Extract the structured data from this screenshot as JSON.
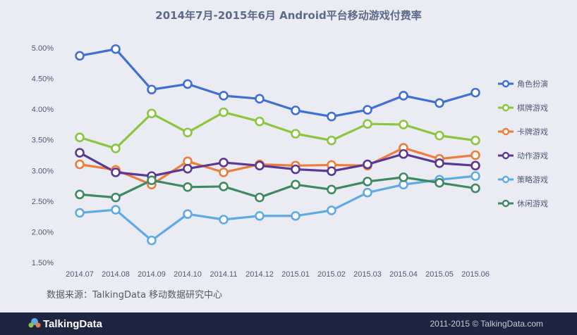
{
  "source_note": "数据来源：TalkingData 移动数据研究中心",
  "footer": {
    "logo_text": "TalkingData",
    "copyright": "2011-2015 © TalkingData.com"
  },
  "chart_data": {
    "type": "line",
    "title": "2014年7月-2015年6月 Android平台移动游戏付费率",
    "xlabel": "",
    "ylabel": "",
    "ylim": [
      1.5,
      5.0
    ],
    "y_ticks": [
      "5.00%",
      "4.50%",
      "4.00%",
      "3.50%",
      "3.00%",
      "2.50%",
      "2.00%",
      "1.50%"
    ],
    "y_tick_values": [
      5.0,
      4.5,
      4.0,
      3.5,
      3.0,
      2.5,
      2.0,
      1.5
    ],
    "grid": false,
    "legend_position": "right",
    "categories": [
      "2014.07",
      "2014.08",
      "2014.09",
      "2014.10",
      "2014.11",
      "2014.12",
      "2015.01",
      "2015.02",
      "2015.03",
      "2015.04",
      "2015.05",
      "2015.06"
    ],
    "series": [
      {
        "name": "角色扮演",
        "color": "#3f6fd6",
        "values": [
          4.87,
          4.98,
          4.32,
          4.41,
          4.22,
          4.17,
          3.98,
          3.88,
          3.99,
          4.22,
          4.1,
          4.27
        ]
      },
      {
        "name": "棋牌游戏",
        "color": "#8cc53e",
        "values": [
          3.54,
          3.36,
          3.93,
          3.62,
          3.95,
          3.8,
          3.6,
          3.49,
          3.76,
          3.75,
          3.57,
          3.49
        ]
      },
      {
        "name": "卡牌游戏",
        "color": "#ee7d3b",
        "values": [
          3.1,
          3.01,
          2.77,
          3.15,
          2.97,
          3.1,
          3.08,
          3.09,
          3.08,
          3.37,
          3.19,
          3.25
        ]
      },
      {
        "name": "动作游戏",
        "color": "#5a3895",
        "values": [
          3.29,
          2.97,
          2.91,
          3.03,
          3.13,
          3.08,
          3.02,
          2.99,
          3.1,
          3.27,
          3.12,
          3.08
        ]
      },
      {
        "name": "策略游戏",
        "color": "#5eaae5",
        "values": [
          2.31,
          2.36,
          1.86,
          2.29,
          2.2,
          2.26,
          2.26,
          2.35,
          2.64,
          2.77,
          2.85,
          2.91
        ]
      },
      {
        "name": "休闲游戏",
        "color": "#3d8a62",
        "values": [
          2.61,
          2.56,
          2.84,
          2.73,
          2.74,
          2.56,
          2.77,
          2.69,
          2.82,
          2.89,
          2.8,
          2.71
        ]
      }
    ]
  }
}
